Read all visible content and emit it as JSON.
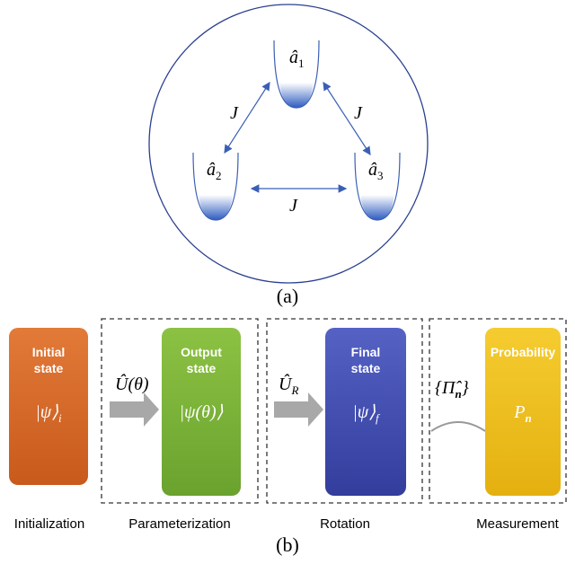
{
  "panel_a": {
    "modes": [
      {
        "base": "â",
        "sub": "1"
      },
      {
        "base": "â",
        "sub": "2"
      },
      {
        "base": "â",
        "sub": "3"
      }
    ],
    "couplings": [
      "J",
      "J",
      "J"
    ],
    "label": "(a)"
  },
  "panel_b": {
    "boxes": [
      {
        "title": [
          "Initial",
          "state"
        ],
        "state": {
          "base": "|ψ⟩",
          "sub": "i"
        }
      },
      {
        "title": [
          "Output",
          "state"
        ],
        "state": {
          "base": "|ψ(θ)⟩",
          "sub": ""
        }
      },
      {
        "title": [
          "Final",
          "state"
        ],
        "state": {
          "base": "|ψ⟩",
          "sub": "f"
        }
      },
      {
        "title": [
          "Probability"
        ],
        "state": {
          "base": "P",
          "sub": "n"
        }
      }
    ],
    "operators": [
      {
        "base": "Û(θ)",
        "sub": ""
      },
      {
        "base": "Û",
        "sub": "R"
      },
      {
        "base": "{Π̂",
        "sub": "n",
        "tail": "}"
      }
    ],
    "stages": [
      "Initialization",
      "Parameterization",
      "Rotation",
      "Measurement"
    ],
    "label": "(b)"
  }
}
